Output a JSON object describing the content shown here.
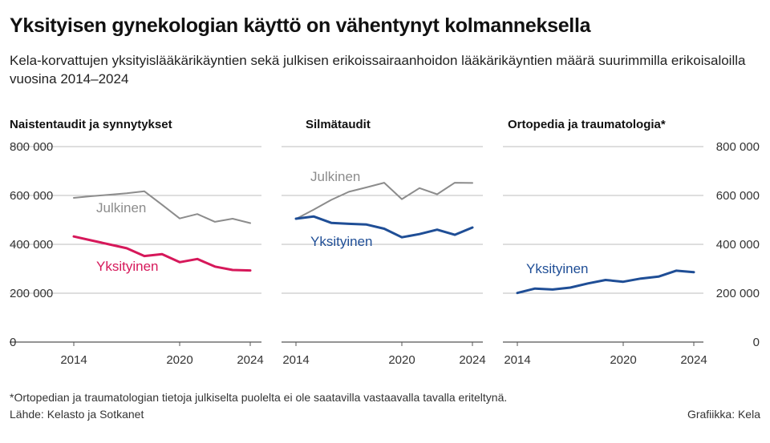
{
  "title": "Yksityisen gynekologian käyttö on vähentynyt kolmanneksella",
  "subtitle": "Kela-korvattujen yksityislääkärikäyntien sekä julkisen erikoissairaanhoidon lääkärikäyntien määrä suurimmilla erikoisaloilla vuosina 2014–2024",
  "footnote": "*Ortopedian ja traumatologian tietoja julkiselta puolelta ei ole saatavilla vastaavalla tavalla eriteltynä.",
  "source": "Lähde: Kelasto ja Sotkanet",
  "credit": "Grafiikka: Kela",
  "colors": {
    "julkinen": "#8c8c8c",
    "yksityinen_naisten": "#d6185a",
    "yksityinen": "#1f4e96",
    "grid": "#bdbdbd",
    "axis_text": "#333333"
  },
  "chart_data": [
    {
      "type": "line",
      "title": "Naistentaudit ja synnytykset",
      "x": [
        2014,
        2015,
        2016,
        2017,
        2018,
        2019,
        2020,
        2021,
        2022,
        2023,
        2024
      ],
      "series": [
        {
          "name": "Julkinen",
          "color": "#8c8c8c",
          "values": [
            590000,
            597000,
            603000,
            609000,
            617000,
            562000,
            506000,
            524000,
            492000,
            505000,
            487000
          ]
        },
        {
          "name": "Yksityinen",
          "color": "#d6185a",
          "values": [
            432000,
            416000,
            400000,
            384000,
            352000,
            360000,
            327000,
            340000,
            309000,
            295000,
            293000
          ]
        }
      ],
      "x_ticks": [
        "2014",
        "2020",
        "2024"
      ],
      "y_ticks": [
        "800 000",
        "600 000",
        "400 000",
        "200 000",
        "0"
      ],
      "ylim": [
        0,
        800000
      ]
    },
    {
      "type": "line",
      "title": "Silmätaudit",
      "x": [
        2014,
        2015,
        2016,
        2017,
        2018,
        2019,
        2020,
        2021,
        2022,
        2023,
        2024
      ],
      "series": [
        {
          "name": "Julkinen",
          "color": "#8c8c8c",
          "values": [
            504000,
            542000,
            582000,
            615000,
            633000,
            652000,
            585000,
            630000,
            605000,
            652000,
            651000
          ]
        },
        {
          "name": "Yksityinen",
          "color": "#1f4e96",
          "values": [
            505000,
            514000,
            488000,
            484000,
            481000,
            464000,
            429000,
            442000,
            460000,
            439000,
            469000
          ]
        }
      ],
      "x_ticks": [
        "2014",
        "2020",
        "2024"
      ],
      "ylim": [
        0,
        800000
      ]
    },
    {
      "type": "line",
      "title": "Ortopedia ja traumatologia*",
      "x": [
        2014,
        2015,
        2016,
        2017,
        2018,
        2019,
        2020,
        2021,
        2022,
        2023,
        2024
      ],
      "series": [
        {
          "name": "Yksityinen",
          "color": "#1f4e96",
          "values": [
            201000,
            219000,
            215000,
            223000,
            240000,
            254000,
            247000,
            260000,
            268000,
            292000,
            286000
          ]
        }
      ],
      "x_ticks": [
        "2014",
        "2020",
        "2024"
      ],
      "y_ticks": [
        "800 000",
        "600 000",
        "400 000",
        "200 000",
        "0"
      ],
      "ylim": [
        0,
        800000
      ]
    }
  ]
}
